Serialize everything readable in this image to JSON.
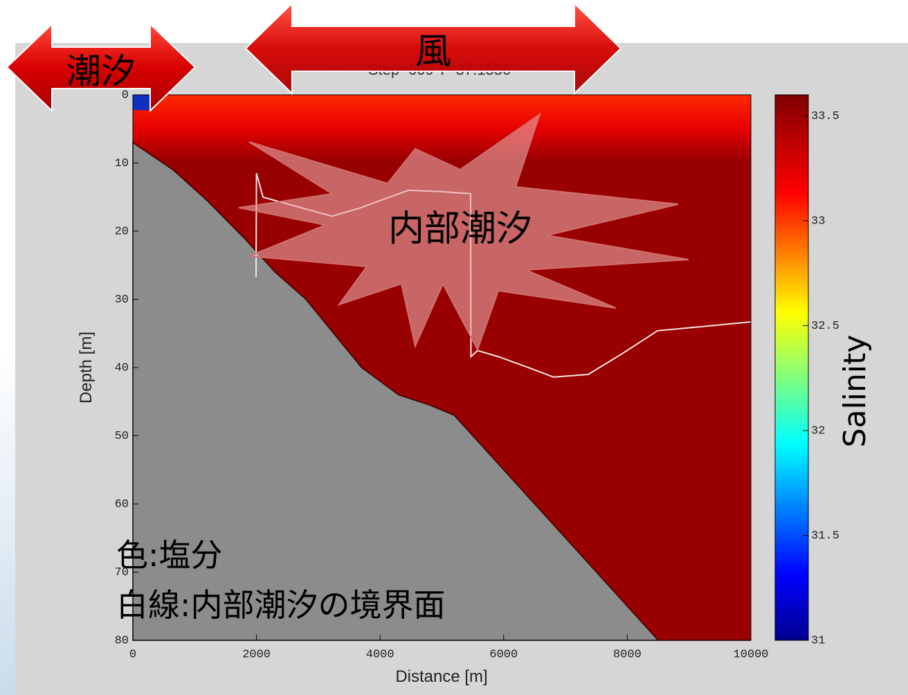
{
  "chart_data": {
    "type": "section",
    "title": "Step=609 T=37.1556",
    "x_label": "Distance [m]",
    "y_label": "Depth [m]",
    "xlim": [
      0,
      10000
    ],
    "ylim": [
      80,
      0
    ],
    "xticks": [
      0,
      2000,
      4000,
      6000,
      8000,
      10000
    ],
    "yticks": [
      0,
      10,
      20,
      30,
      40,
      50,
      60,
      70,
      80
    ],
    "bathymetry": {
      "color": "#8c8c8c",
      "x": [
        0,
        650,
        1200,
        1800,
        2300,
        2800,
        3700,
        4300,
        4800,
        5200,
        5700,
        6300,
        6800,
        7400,
        7900,
        8500,
        10000
      ],
      "y": [
        7,
        11,
        15.5,
        21,
        26,
        30,
        40,
        44,
        45.5,
        47,
        52,
        58,
        63,
        69,
        74,
        80,
        80
      ]
    },
    "interface": {
      "color": "#f4e6e6",
      "x": [
        1993,
        2000,
        2105,
        2500,
        3225,
        3673,
        4000,
        4457,
        5000,
        5465,
        5470,
        5577,
        5913,
        6400,
        6809,
        7368,
        7928,
        8488,
        9200,
        10000
      ],
      "y": [
        26.7,
        11.5,
        15,
        16,
        17.8,
        16.6,
        15.5,
        14,
        14.2,
        14.5,
        38.4,
        37.5,
        38.4,
        40,
        41.4,
        41,
        37.9,
        34.6,
        34,
        33.3
      ]
    },
    "colorbar": {
      "label": "Salinity",
      "lim": [
        31,
        33.6
      ],
      "ticks": [
        31,
        31.5,
        32,
        32.5,
        33,
        33.5
      ]
    },
    "annotations": {
      "tide": "潮汐",
      "wind": "風",
      "internal_tide": "内部潮汐",
      "legend_color": "色:塩分",
      "legend_line": "白線:内部潮汐の境界面"
    }
  }
}
